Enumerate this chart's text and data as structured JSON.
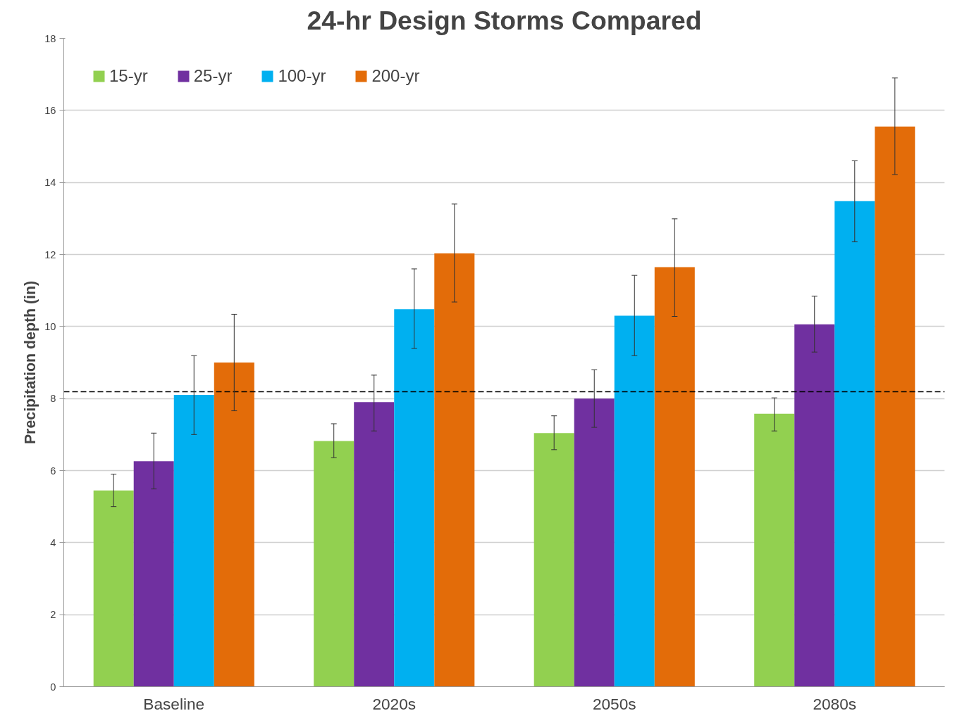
{
  "chart_data": {
    "type": "bar",
    "title": "24-hr Design Storms Compared",
    "ylabel": "Precipitation depth (in)",
    "categories": [
      "Baseline",
      "2020s",
      "2050s",
      "2080s"
    ],
    "series": [
      {
        "name": "15-yr",
        "color": "#92d050",
        "values": [
          5.45,
          6.82,
          7.04,
          7.58
        ],
        "errors": [
          [
            5.0,
            5.9
          ],
          [
            6.36,
            7.3
          ],
          [
            6.58,
            7.52
          ],
          [
            7.1,
            8.02
          ]
        ]
      },
      {
        "name": "25-yr",
        "color": "#7030a0",
        "values": [
          6.26,
          7.9,
          8.0,
          10.06
        ],
        "errors": [
          [
            5.49,
            7.04
          ],
          [
            7.1,
            8.65
          ],
          [
            7.2,
            8.8
          ],
          [
            9.29,
            10.84
          ]
        ]
      },
      {
        "name": "100-yr",
        "color": "#00b0f0",
        "values": [
          8.1,
          10.48,
          10.3,
          13.48
        ],
        "errors": [
          [
            7.0,
            9.19
          ],
          [
            9.39,
            11.6
          ],
          [
            9.19,
            11.42
          ],
          [
            12.35,
            14.6
          ]
        ]
      },
      {
        "name": "200-yr",
        "color": "#e36c09",
        "values": [
          9.0,
          12.03,
          11.65,
          15.55
        ],
        "errors": [
          [
            7.66,
            10.34
          ],
          [
            10.68,
            13.4
          ],
          [
            10.28,
            12.99
          ],
          [
            14.22,
            16.9
          ]
        ]
      }
    ],
    "ylim": [
      0,
      18
    ],
    "yticks": [
      0,
      2,
      4,
      6,
      8,
      10,
      12,
      14,
      16,
      18
    ],
    "grid": "y",
    "legend": "top left",
    "ref_lines": [
      {
        "axis": "y",
        "value": 8.19,
        "color": "#000000",
        "line_style": "dashed"
      }
    ]
  }
}
